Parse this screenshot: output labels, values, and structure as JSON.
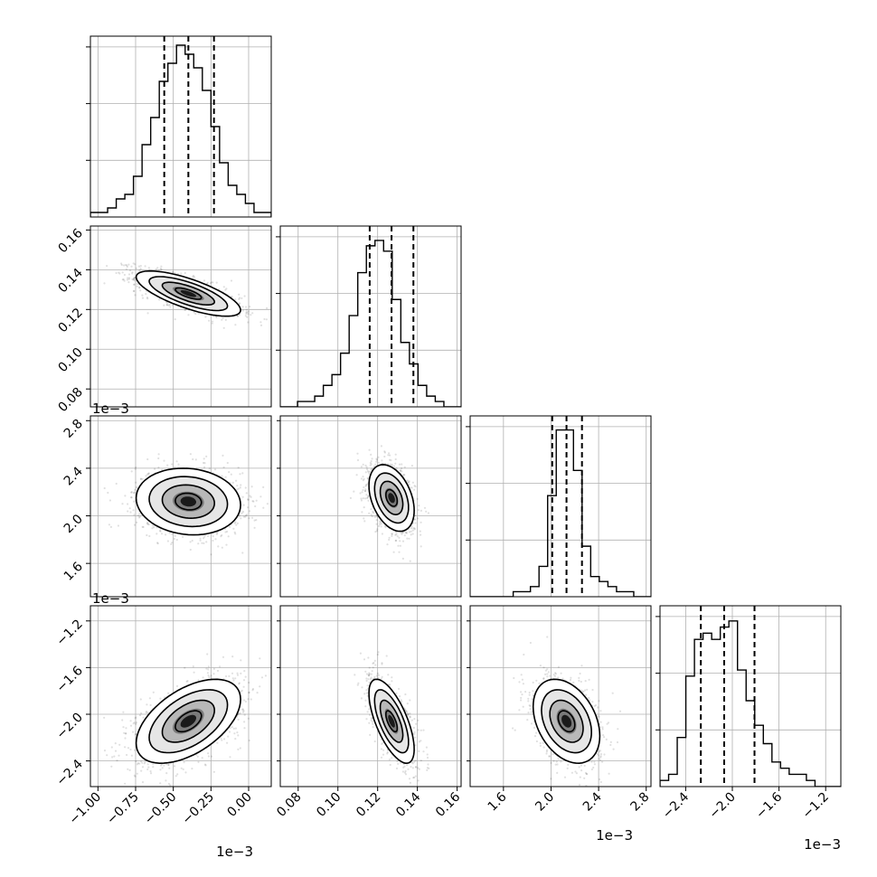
{
  "chart_data": {
    "type": "corner",
    "grid": true,
    "params": [
      {
        "range": [
          -1.05,
          0.15
        ],
        "ticks": [
          -1.0,
          -0.75,
          -0.5,
          -0.25,
          0.0
        ],
        "tick_labels": [
          "−1.00",
          "−0.75",
          "−0.50",
          "−0.25",
          "0.00"
        ],
        "offset": "1e−3"
      },
      {
        "range": [
          0.071,
          0.162
        ],
        "ticks": [
          0.08,
          0.1,
          0.12,
          0.14,
          0.16
        ],
        "tick_labels": [
          "0.08",
          "0.10",
          "0.12",
          "0.14",
          "0.16"
        ],
        "offset": ""
      },
      {
        "range": [
          1.32,
          2.84
        ],
        "ticks": [
          1.6,
          2.0,
          2.4,
          2.8
        ],
        "tick_labels": [
          "1.6",
          "2.0",
          "2.4",
          "2.8"
        ],
        "offset": "1e−3"
      },
      {
        "range": [
          -2.62,
          -1.07
        ],
        "ticks": [
          -2.4,
          -2.0,
          -1.6,
          -1.2
        ],
        "tick_labels": [
          "−2.4",
          "−2.0",
          "−1.6",
          "−1.2"
        ],
        "offset": "1e−3"
      }
    ],
    "quantiles": [
      [
        -0.56,
        -0.4,
        -0.23
      ],
      [
        0.116,
        0.127,
        0.138
      ],
      [
        2.01,
        2.13,
        2.26
      ],
      [
        -2.27,
        -2.07,
        -1.81
      ]
    ],
    "histograms": [
      {
        "counts": [
          1,
          1,
          2,
          4,
          5,
          9,
          16,
          22,
          30,
          34,
          38,
          36,
          33,
          28,
          20,
          12,
          7,
          5,
          3,
          1,
          1
        ],
        "max": 38
      },
      {
        "counts": [
          0,
          0,
          1,
          1,
          2,
          4,
          6,
          10,
          17,
          25,
          30,
          31,
          29,
          20,
          12,
          8,
          4,
          2,
          1,
          0,
          0
        ],
        "max": 32
      },
      {
        "counts": [
          0,
          0,
          0,
          0,
          0,
          1,
          1,
          2,
          6,
          20,
          33,
          33,
          25,
          10,
          4,
          3,
          2,
          1,
          1,
          0,
          0
        ],
        "max": 34
      },
      {
        "counts": [
          1,
          2,
          8,
          18,
          24,
          25,
          24,
          26,
          27,
          19,
          14,
          10,
          7,
          4,
          3,
          2,
          2,
          1,
          0,
          0,
          0
        ],
        "max": 28
      }
    ],
    "pairs": [
      {
        "row": 1,
        "col": 0,
        "center": [
          -0.4,
          0.128
        ],
        "cov": [
          [
            0.03,
            -0.00072
          ],
          [
            -0.00072,
            3.24e-05
          ]
        ]
      },
      {
        "row": 2,
        "col": 0,
        "center": [
          -0.4,
          2.12
        ],
        "cov": [
          [
            0.03,
            -0.0025
          ],
          [
            -0.0025,
            0.0196
          ]
        ]
      },
      {
        "row": 2,
        "col": 1,
        "center": [
          0.127,
          2.15
        ],
        "cov": [
          [
            3.24e-05,
            -0.0003
          ],
          [
            -0.0003,
            0.0196
          ]
        ]
      },
      {
        "row": 3,
        "col": 0,
        "center": [
          -0.4,
          -2.06
        ],
        "cov": [
          [
            0.03,
            0.0162
          ],
          [
            0.0162,
            0.0324
          ]
        ]
      },
      {
        "row": 3,
        "col": 1,
        "center": [
          0.127,
          -2.06
        ],
        "cov": [
          [
            3.24e-05,
            -0.00068
          ],
          [
            -0.00068,
            0.0324
          ]
        ]
      },
      {
        "row": 3,
        "col": 2,
        "center": [
          2.13,
          -2.06
        ],
        "cov": [
          [
            0.0196,
            -0.0088
          ],
          [
            -0.0088,
            0.0324
          ]
        ]
      }
    ],
    "contour_levels_sigma": [
      0.5,
      1.0,
      1.5,
      2.0
    ]
  }
}
